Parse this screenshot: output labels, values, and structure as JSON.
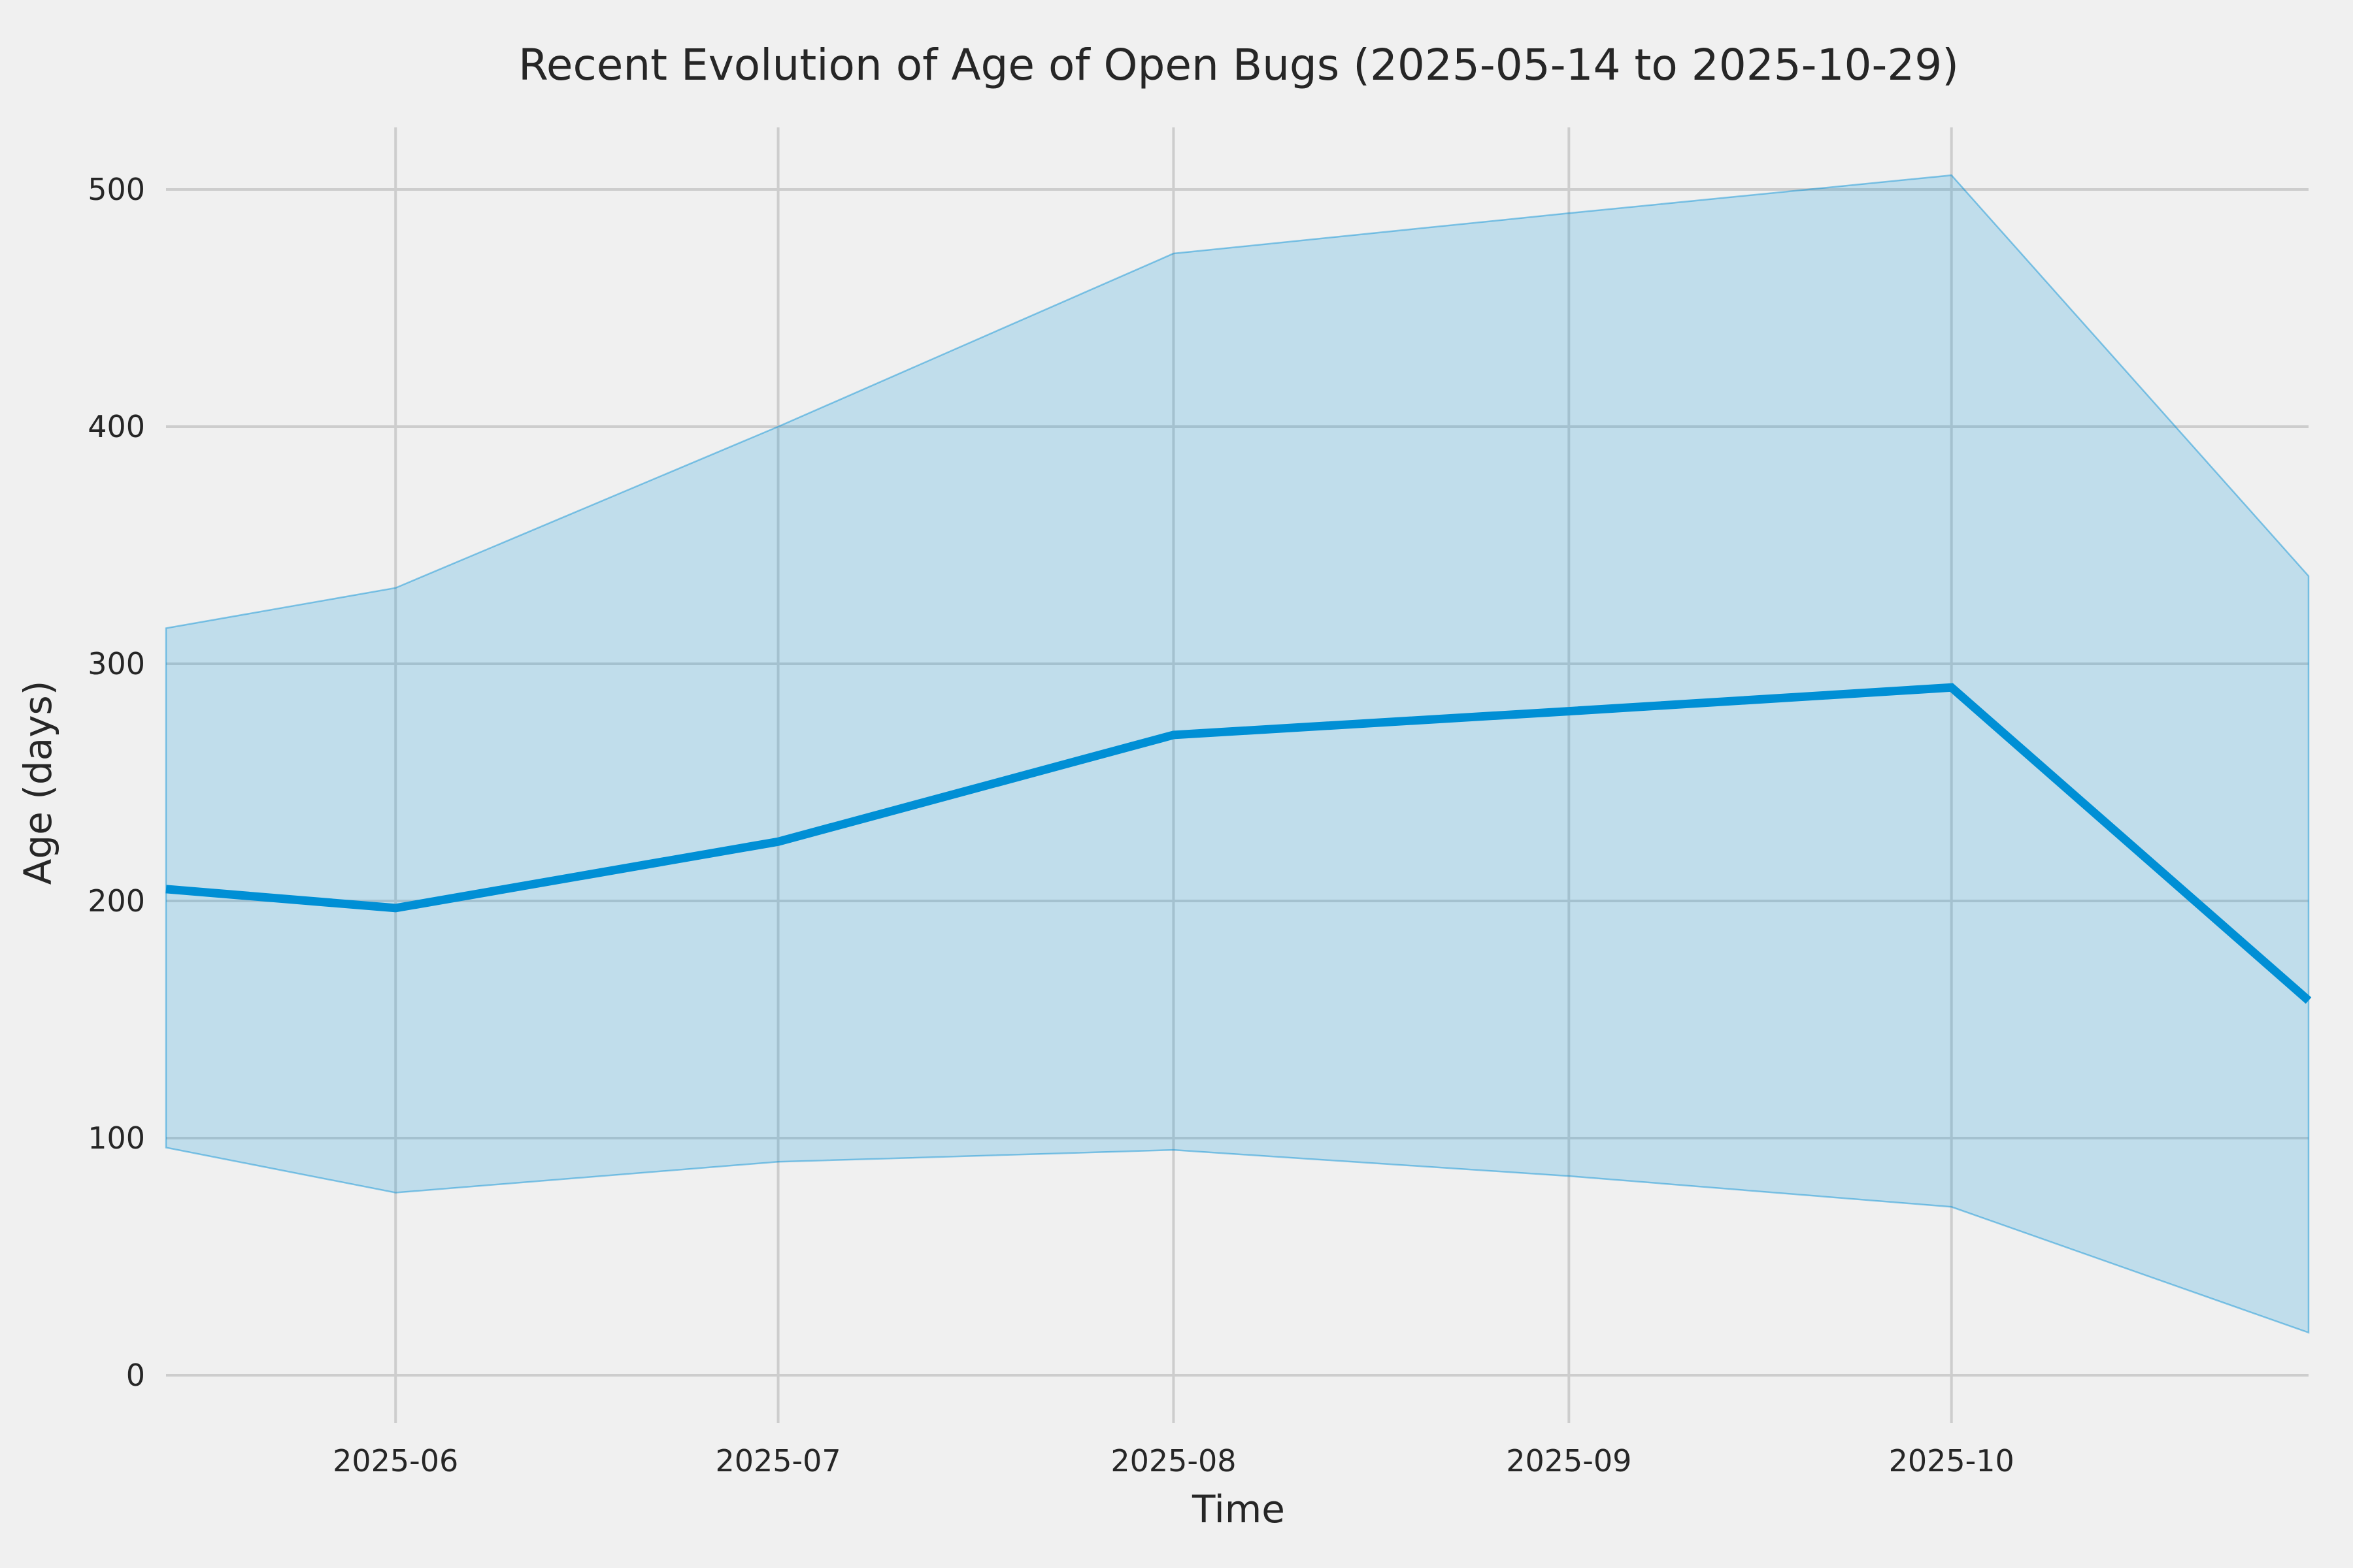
{
  "figure": {
    "background_color": "#f0f0f0",
    "grid_color": "#cdcdcd",
    "text_color": "#262626",
    "line_color": "#008fd5",
    "band_fill_alpha": 0.2
  },
  "chart_data": {
    "type": "line",
    "title": "Recent Evolution of Age of Open Bugs (2025-05-14 to 2025-10-29)",
    "xlabel": "Time",
    "ylabel": "Age (days)",
    "date_range": {
      "start": "2025-05-14",
      "end": "2025-10-29"
    },
    "x_total_days": 168,
    "x_ticks": [
      {
        "label": "2025-06",
        "day": 18
      },
      {
        "label": "2025-07",
        "day": 48
      },
      {
        "label": "2025-08",
        "day": 79
      },
      {
        "label": "2025-09",
        "day": 110
      },
      {
        "label": "2025-10",
        "day": 140
      }
    ],
    "y_ticks": [
      0,
      100,
      200,
      300,
      400,
      500
    ],
    "ylim": [
      -20,
      525
    ],
    "grid": true,
    "legend": "none",
    "x_days": [
      0,
      18,
      48,
      79,
      110,
      140,
      168
    ],
    "x_dates": [
      "2025-05-14",
      "2025-06-01",
      "2025-07-01",
      "2025-08-01",
      "2025-09-01",
      "2025-10-01",
      "2025-10-29"
    ],
    "series": [
      {
        "name": "age-line",
        "role": "central line",
        "values": [
          205,
          197,
          225,
          270,
          280,
          290,
          158
        ]
      },
      {
        "name": "age-band-upper",
        "role": "band upper bound",
        "values": [
          315,
          332,
          400,
          473,
          490,
          506,
          337
        ]
      },
      {
        "name": "age-band-lower",
        "role": "band lower bound",
        "values": [
          96,
          77,
          90,
          95,
          84,
          71,
          18
        ]
      }
    ]
  }
}
